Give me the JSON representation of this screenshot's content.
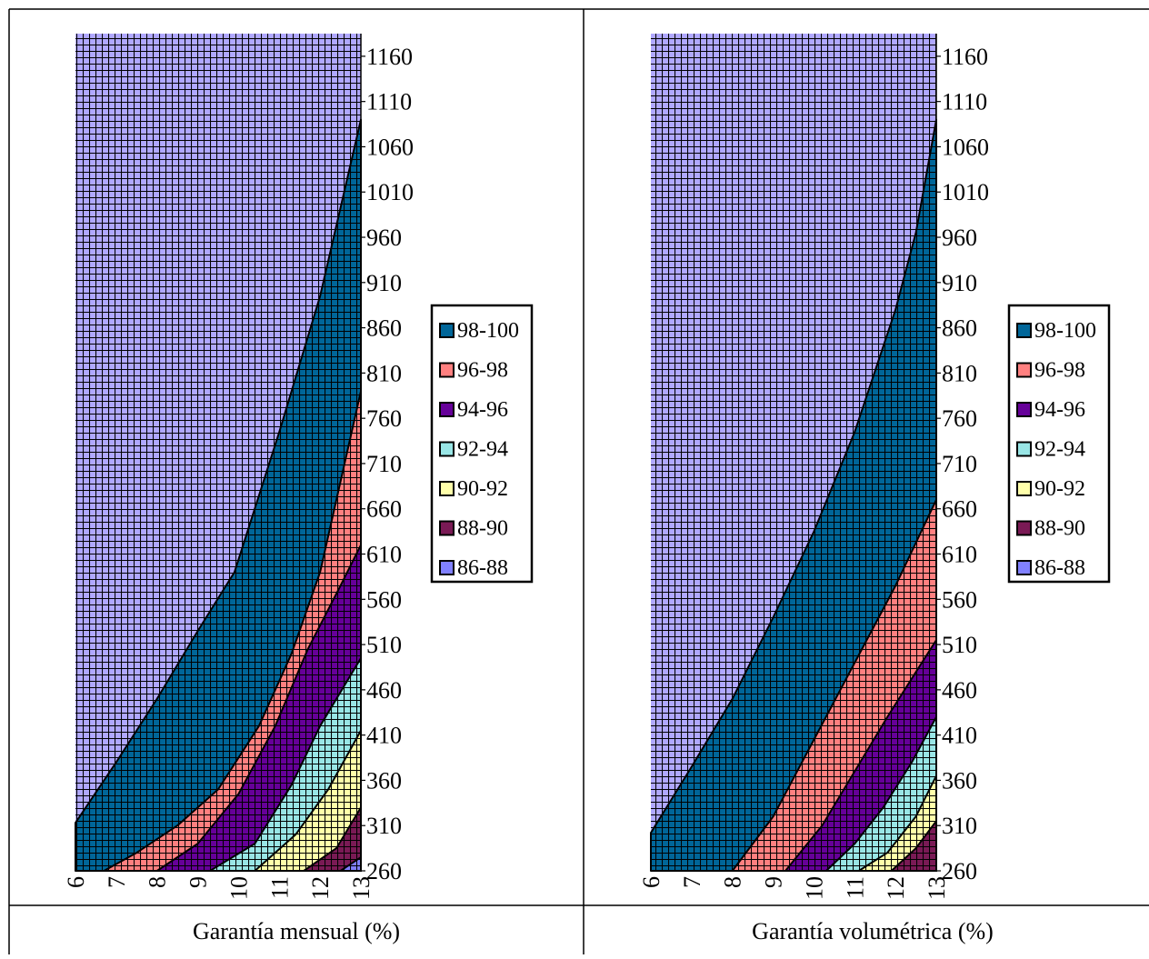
{
  "legend_entries": [
    {
      "label": "98-100",
      "color": "#006699"
    },
    {
      "label": "96-98",
      "color": "#FF8080"
    },
    {
      "label": "94-96",
      "color": "#660099"
    },
    {
      "label": "92-94",
      "color": "#99E6E6"
    },
    {
      "label": "90-92",
      "color": "#FFFFAA"
    },
    {
      "label": "88-90",
      "color": "#7A1A55"
    },
    {
      "label": "86-88",
      "color": "#8080FF"
    }
  ],
  "background_color": "#B0A8FF",
  "chart_data": [
    {
      "type": "contour",
      "xlabel": "Garantía mensual (%)",
      "ylabel": "",
      "x_ticks": [
        "6",
        "7",
        "8",
        "9",
        "10",
        "11",
        "12",
        "13"
      ],
      "y_ticks": [
        "260",
        "310",
        "360",
        "410",
        "460",
        "510",
        "560",
        "610",
        "660",
        "710",
        "760",
        "810",
        "860",
        "910",
        "960",
        "1010",
        "1060",
        "1110",
        "1160"
      ],
      "xlim": [
        6,
        13
      ],
      "ylim": [
        260,
        1185
      ],
      "legend": [
        "98-100",
        "96-98",
        "94-96",
        "92-94",
        "90-92",
        "88-90",
        "86-88"
      ],
      "boundaries": [
        {
          "name": "98",
          "points": [
            [
              6,
              313
            ],
            [
              7,
              380
            ],
            [
              8,
              450
            ],
            [
              9,
              525
            ],
            [
              9.9,
              590
            ],
            [
              11,
              745
            ],
            [
              12,
              895
            ],
            [
              13,
              1090
            ]
          ]
        },
        {
          "name": "96",
          "points": [
            [
              6.7,
              260
            ],
            [
              7.5,
              280
            ],
            [
              8.5,
              310
            ],
            [
              9.5,
              350
            ],
            [
              10.5,
              420
            ],
            [
              11.3,
              500
            ],
            [
              12,
              590
            ],
            [
              13,
              790
            ]
          ]
        },
        {
          "name": "94",
          "points": [
            [
              8,
              260
            ],
            [
              9,
              290
            ],
            [
              10,
              345
            ],
            [
              10.9,
              420
            ],
            [
              11.7,
              505
            ],
            [
              12.5,
              575
            ],
            [
              13,
              620
            ]
          ]
        },
        {
          "name": "92",
          "points": [
            [
              9.3,
              260
            ],
            [
              10.4,
              290
            ],
            [
              11.3,
              355
            ],
            [
              12,
              420
            ],
            [
              13,
              495
            ]
          ]
        },
        {
          "name": "90",
          "points": [
            [
              10.4,
              260
            ],
            [
              11.4,
              300
            ],
            [
              12.2,
              350
            ],
            [
              13,
              415
            ]
          ]
        },
        {
          "name": "88",
          "points": [
            [
              11.6,
              260
            ],
            [
              12.4,
              285
            ],
            [
              13,
              330
            ]
          ]
        },
        {
          "name": "86",
          "points": [
            [
              12.5,
              260
            ],
            [
              13,
              275
            ]
          ]
        }
      ]
    },
    {
      "type": "contour",
      "xlabel": "Garantía volumétrica (%)",
      "ylabel": "",
      "x_ticks": [
        "6",
        "7",
        "8",
        "9",
        "10",
        "11",
        "12",
        "13"
      ],
      "y_ticks": [
        "260",
        "310",
        "360",
        "410",
        "460",
        "510",
        "560",
        "610",
        "660",
        "710",
        "760",
        "810",
        "860",
        "910",
        "960",
        "1010",
        "1060",
        "1110",
        "1160"
      ],
      "xlim": [
        6,
        13
      ],
      "ylim": [
        260,
        1185
      ],
      "legend": [
        "98-100",
        "96-98",
        "94-96",
        "92-94",
        "90-92",
        "88-90",
        "86-88"
      ],
      "boundaries": [
        {
          "name": "98",
          "points": [
            [
              6,
              302
            ],
            [
              7,
              375
            ],
            [
              8,
              450
            ],
            [
              9,
              540
            ],
            [
              10,
              635
            ],
            [
              11,
              745
            ],
            [
              12,
              880
            ],
            [
              12.5,
              965
            ],
            [
              13,
              1090
            ]
          ]
        },
        {
          "name": "96",
          "points": [
            [
              8,
              260
            ],
            [
              9,
              320
            ],
            [
              10,
              405
            ],
            [
              11,
              490
            ],
            [
              12,
              575
            ],
            [
              13,
              670
            ]
          ]
        },
        {
          "name": "94",
          "points": [
            [
              9.3,
              260
            ],
            [
              10.2,
              310
            ],
            [
              11,
              370
            ],
            [
              11.8,
              430
            ],
            [
              13,
              515
            ]
          ]
        },
        {
          "name": "92",
          "points": [
            [
              10.3,
              260
            ],
            [
              11,
              290
            ],
            [
              11.7,
              330
            ],
            [
              12.4,
              380
            ],
            [
              13,
              430
            ]
          ]
        },
        {
          "name": "90",
          "points": [
            [
              11.1,
              260
            ],
            [
              11.8,
              280
            ],
            [
              12.5,
              320
            ],
            [
              13,
              365
            ]
          ]
        },
        {
          "name": "88",
          "points": [
            [
              11.9,
              260
            ],
            [
              12.5,
              285
            ],
            [
              13,
              315
            ]
          ]
        }
      ]
    }
  ]
}
